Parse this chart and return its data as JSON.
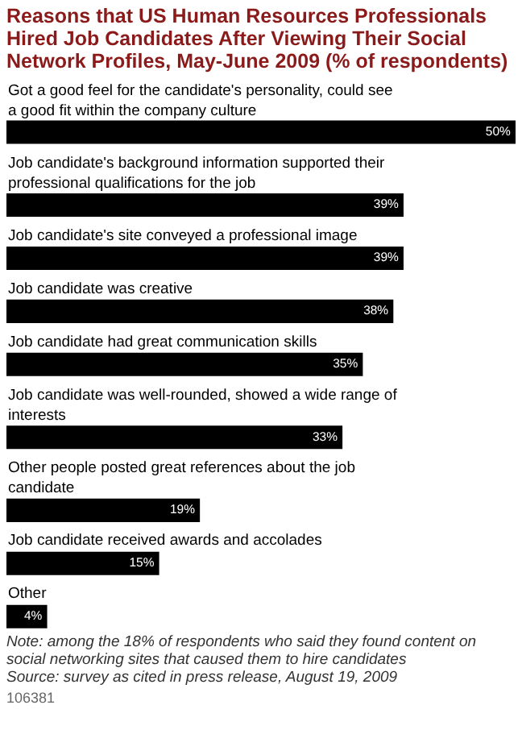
{
  "chart_data": {
    "type": "bar",
    "orientation": "horizontal",
    "title": "Reasons that US Human Resources Professionals Hired Job Candidates After Viewing Their Social Network Profiles, May-June 2009 (% of respondents)",
    "categories": [
      "Got a good feel for the candidate's personality, could see a good fit within the company culture",
      "Job candidate's background information supported their professional qualifications for the job",
      "Job candidate's site conveyed a professional image",
      "Job candidate was creative",
      "Job candidate had great communication skills",
      "Job candidate was well-rounded, showed a wide range of interests",
      "Other people posted great references about the job candidate",
      "Job candidate received awards and accolades",
      "Other"
    ],
    "values": [
      50,
      39,
      39,
      38,
      35,
      33,
      19,
      15,
      4
    ],
    "value_labels": [
      "50%",
      "39%",
      "39%",
      "38%",
      "35%",
      "33%",
      "19%",
      "15%",
      "4%"
    ],
    "color": "#000000",
    "xlim": [
      0,
      50
    ],
    "tick_labels": false,
    "grid": false,
    "legend": false,
    "annotations": [
      "Note: among the 18% of respondents who said they found content on social networking sites that caused them to hire candidates",
      "Source: survey as cited in press release, August 19, 2009",
      "106381"
    ]
  }
}
